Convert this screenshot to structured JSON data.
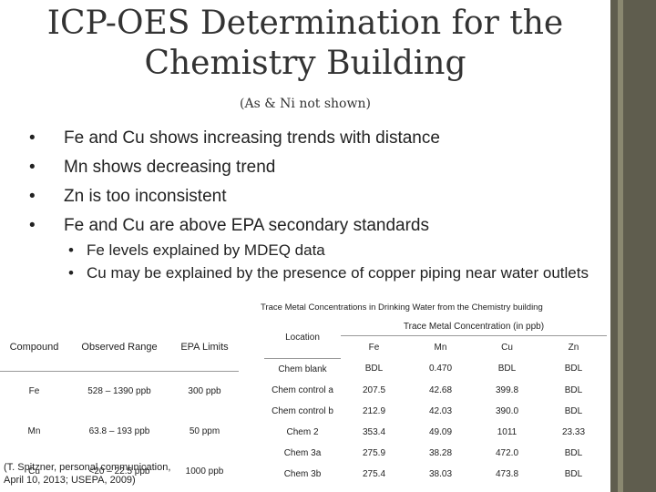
{
  "slide": {
    "title_line1": "ICP-OES Determination for the",
    "title_line2": "Chemistry Building",
    "subtitle": "(As & Ni not shown)",
    "bullets": [
      "Fe and Cu shows increasing trends with distance",
      "Mn shows decreasing trend",
      "Zn is too inconsistent",
      "Fe and Cu are above EPA secondary standards"
    ],
    "sub_bullets": [
      "Fe levels explained by MDEQ data",
      "Cu may be explained by the presence of copper piping near water outlets"
    ]
  },
  "left_table": {
    "headers": [
      "Compound",
      "Observed Range",
      "EPA Limits"
    ],
    "rows": [
      [
        "Fe",
        "528 – 1390 ppb",
        "300 ppb"
      ],
      [
        "Mn",
        "63.8 – 193 ppb",
        "50 ppm"
      ],
      [
        "Cu",
        "<20 – 22.5 ppb",
        "1000 ppb"
      ]
    ],
    "citation_line1": "(T. Spitzner, personal communication,",
    "citation_line2": "April 10, 2013; USEPA, 2009)"
  },
  "right_table": {
    "title": "Trace Metal Concentrations in Drinking Water from the Chemistry building",
    "location_header": "Location",
    "group_header": "Trace Metal Concentration (in ppb)",
    "elements": [
      "Fe",
      "Mn",
      "Cu",
      "Zn"
    ],
    "rows": [
      {
        "location": "Chem blank",
        "values": [
          "BDL",
          "0.470",
          "BDL",
          "BDL"
        ]
      },
      {
        "location": "Chem control a",
        "values": [
          "207.5",
          "42.68",
          "399.8",
          "BDL"
        ]
      },
      {
        "location": "Chem control b",
        "values": [
          "212.9",
          "42.03",
          "390.0",
          "BDL"
        ]
      },
      {
        "location": "Chem 2",
        "values": [
          "353.4",
          "49.09",
          "1011",
          "23.33"
        ]
      },
      {
        "location": "Chem 3a",
        "values": [
          "275.9",
          "38.28",
          "472.0",
          "BDL"
        ]
      },
      {
        "location": "Chem 3b",
        "values": [
          "275.4",
          "38.03",
          "473.8",
          "BDL"
        ]
      }
    ]
  },
  "colors": {
    "accent_bar": "#5f5d4e",
    "accent_stripe": "#8a8870"
  }
}
